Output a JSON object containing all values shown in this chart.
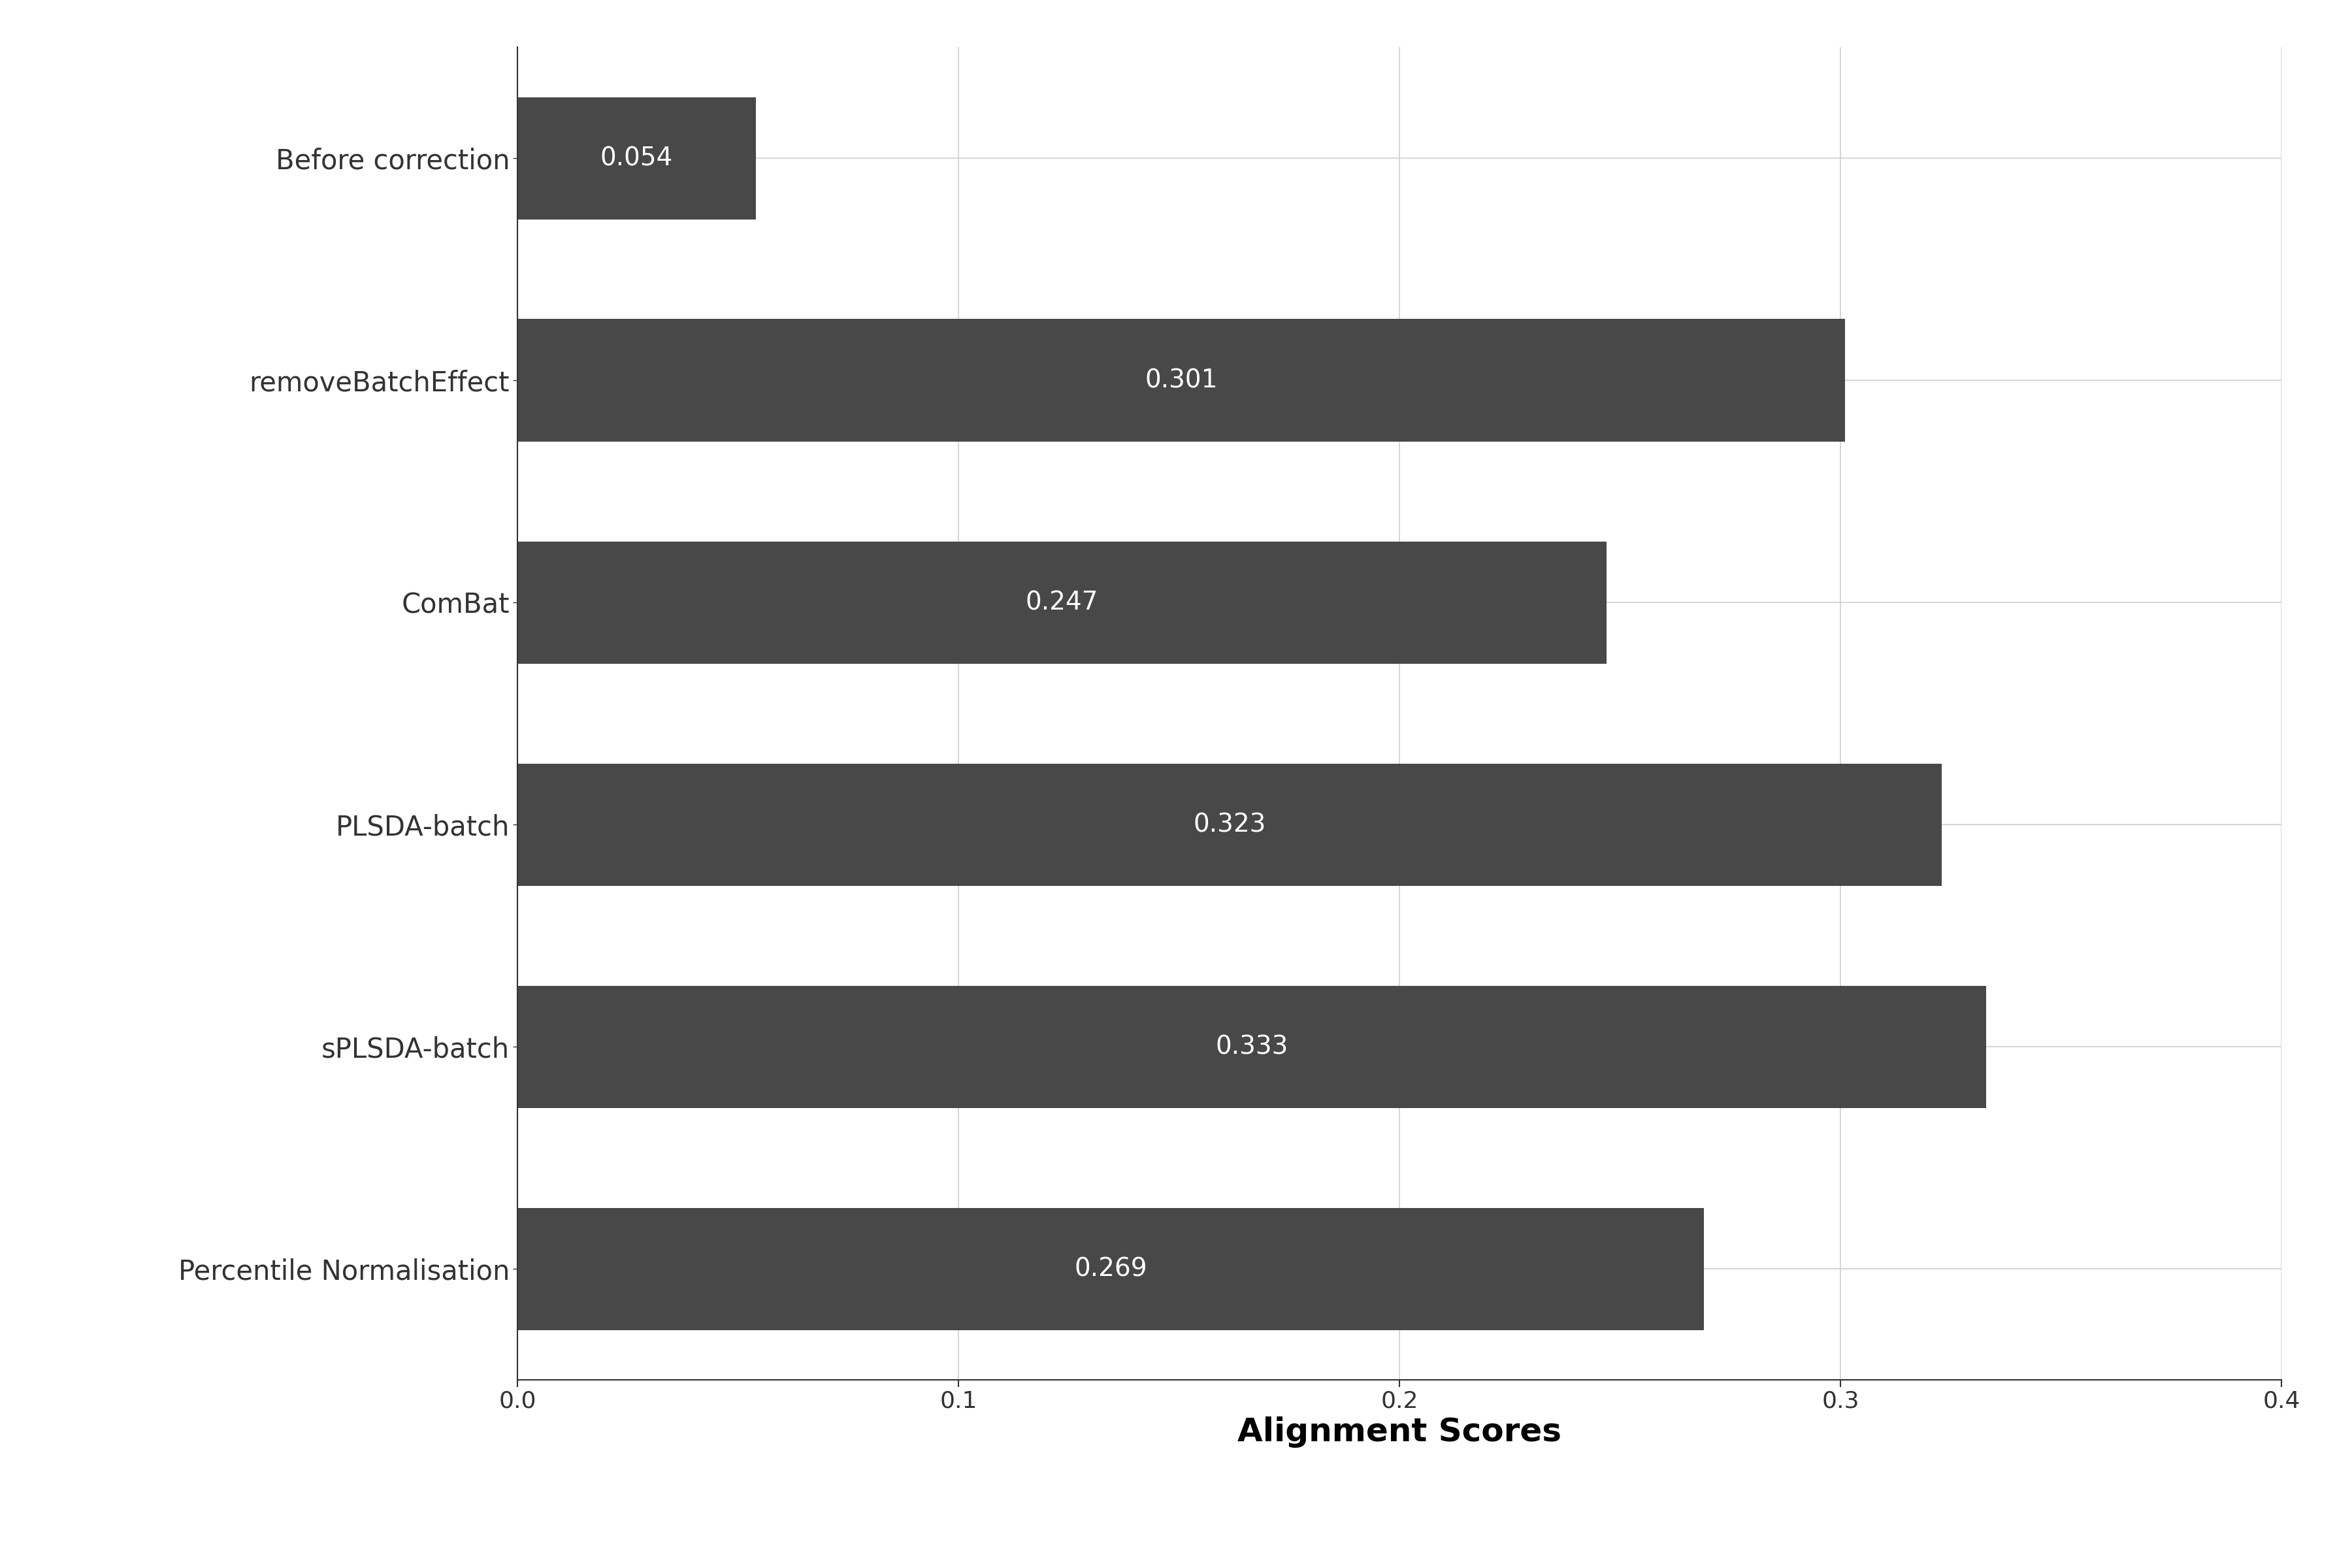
{
  "categories": [
    "Before correction",
    "removeBatchEffect",
    "ComBat",
    "PLSDA-batch",
    "sPLSDA-batch",
    "Percentile Normalisation"
  ],
  "values": [
    0.054,
    0.301,
    0.247,
    0.323,
    0.333,
    0.269
  ],
  "bar_color": "#484848",
  "text_color": "#ffffff",
  "xlabel": "Alignment Scores",
  "xlim": [
    0,
    0.4
  ],
  "xticks": [
    0.0,
    0.1,
    0.2,
    0.3,
    0.4
  ],
  "xtick_labels": [
    "0.0",
    "0.1",
    "0.2",
    "0.3",
    "0.4"
  ],
  "background_color": "#ffffff",
  "grid_color": "#d0d0d0",
  "bar_height": 0.55,
  "label_fontsize": 30,
  "tick_fontsize": 26,
  "value_fontsize": 28,
  "xlabel_fontsize": 36
}
